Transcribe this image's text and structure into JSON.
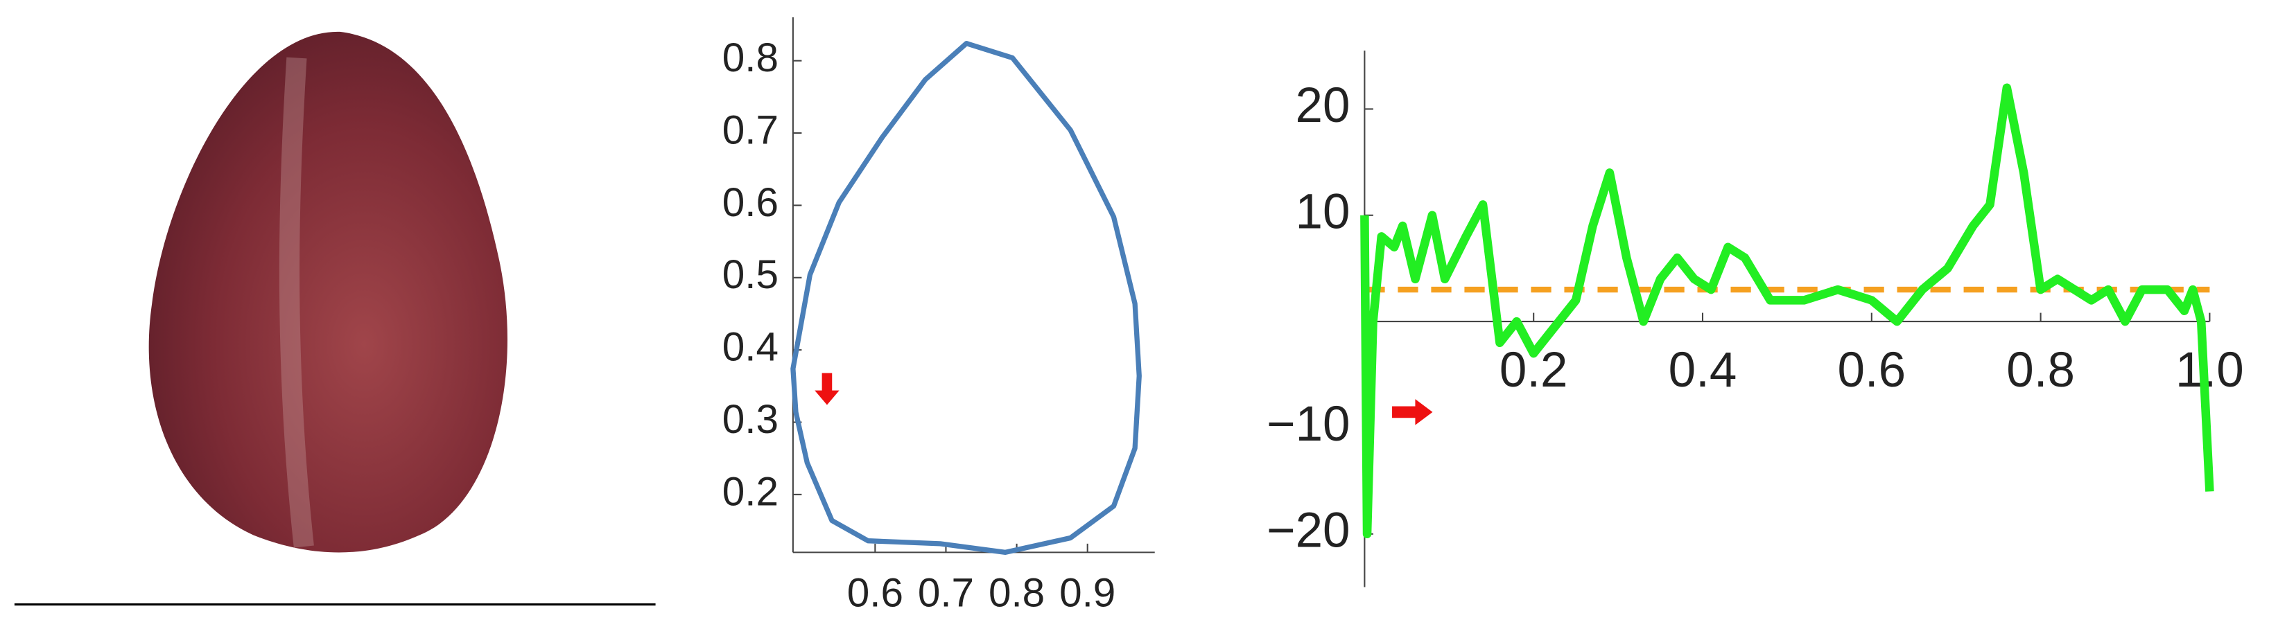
{
  "chart_data": [
    {
      "type": "line",
      "closed": true,
      "color": "#4a7fb8",
      "x": [
        0.484,
        0.508,
        0.549,
        0.61,
        0.671,
        0.729,
        0.794,
        0.876,
        0.937,
        0.967,
        0.973,
        0.967,
        0.937,
        0.876,
        0.784,
        0.692,
        0.59,
        0.539,
        0.504,
        0.488
      ],
      "values": [
        0.374,
        0.504,
        0.604,
        0.694,
        0.774,
        0.824,
        0.804,
        0.704,
        0.584,
        0.464,
        0.364,
        0.264,
        0.184,
        0.14,
        0.12,
        0.132,
        0.136,
        0.164,
        0.244,
        0.314
      ],
      "xlim": [
        0.484,
        0.995
      ],
      "ylim": [
        0.12,
        0.86
      ],
      "xticks": [
        0.6,
        0.7,
        0.8,
        0.9
      ],
      "yticks": [
        0.2,
        0.3,
        0.4,
        0.5,
        0.6,
        0.7,
        0.8
      ]
    },
    {
      "type": "line",
      "closed": false,
      "color": "#22ee22",
      "x": [
        0,
        0.003,
        0.01,
        0.02,
        0.035,
        0.045,
        0.06,
        0.08,
        0.095,
        0.12,
        0.14,
        0.16,
        0.18,
        0.2,
        0.22,
        0.25,
        0.27,
        0.29,
        0.31,
        0.33,
        0.35,
        0.37,
        0.39,
        0.41,
        0.43,
        0.45,
        0.48,
        0.52,
        0.56,
        0.6,
        0.63,
        0.66,
        0.69,
        0.72,
        0.74,
        0.76,
        0.78,
        0.8,
        0.82,
        0.84,
        0.86,
        0.88,
        0.9,
        0.92,
        0.95,
        0.97,
        0.98,
        0.99,
        1.0
      ],
      "values": [
        10,
        -20,
        0,
        8,
        7,
        9,
        4,
        10,
        4,
        8,
        11,
        -2,
        0,
        -3,
        -1,
        2,
        9,
        14,
        6,
        0,
        4,
        6,
        4,
        3,
        7,
        6,
        2,
        2,
        3,
        2,
        0,
        3,
        5,
        9,
        11,
        22,
        14,
        3,
        4,
        3,
        2,
        3,
        0,
        3,
        3,
        1,
        3,
        0,
        -16
      ],
      "reference_line": 3,
      "reference_color": "#f5a020",
      "xlim": [
        0,
        1
      ],
      "ylim": [
        -25,
        25.5
      ],
      "xticks": [
        0.2,
        0.4,
        0.6,
        0.8,
        {
          "value": 1,
          "label": "1.0"
        }
      ],
      "yticks": [
        {
          "value": -20,
          "label": "−20"
        },
        {
          "value": -10,
          "label": "−10"
        },
        10,
        20
      ]
    }
  ]
}
